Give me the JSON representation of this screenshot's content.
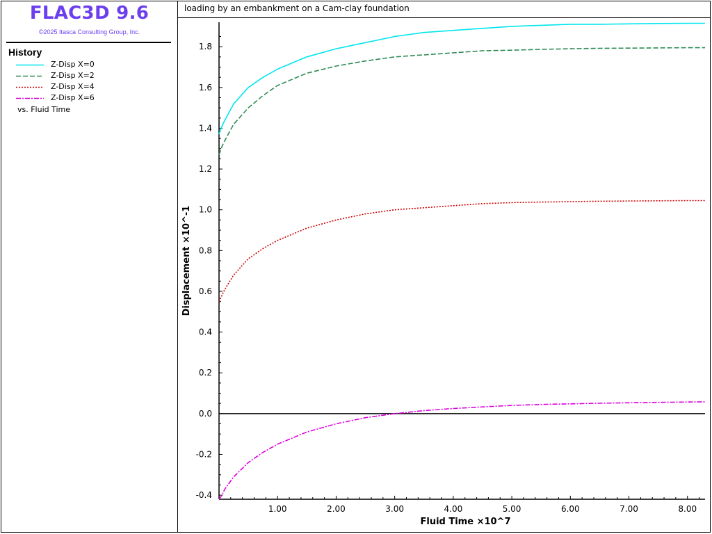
{
  "app": {
    "title": "FLAC3D 9.6",
    "copyright": "©2025 Itasca Consulting Group, Inc.",
    "title_color": "#6b3ff0"
  },
  "history_panel": {
    "heading": "History",
    "vs_label": "vs. Fluid Time"
  },
  "plot": {
    "title": "loading by an embankment on a Cam-clay foundation"
  },
  "chart_data": {
    "type": "line",
    "title": "loading by an embankment on a Cam-clay foundation",
    "xlabel": "Fluid Time ×10^7",
    "ylabel": "Displacement ×10^-1",
    "xlim": [
      0.0,
      8.3
    ],
    "ylim": [
      -0.42,
      1.92
    ],
    "x_ticks": [
      "1.00",
      "2.00",
      "3.00",
      "4.00",
      "5.00",
      "6.00",
      "7.00",
      "8.00"
    ],
    "y_ticks": [
      "-0.4",
      "-0.2",
      "0.0",
      "0.2",
      "0.4",
      "0.6",
      "0.8",
      "1.0",
      "1.2",
      "1.4",
      "1.6",
      "1.8"
    ],
    "grid": false,
    "zero_line": true,
    "legend_placement": "left panel",
    "x": [
      0.0,
      0.05,
      0.1,
      0.25,
      0.5,
      0.75,
      1.0,
      1.5,
      2.0,
      2.5,
      3.0,
      3.5,
      4.0,
      4.5,
      5.0,
      5.5,
      6.0,
      6.5,
      7.0,
      7.5,
      8.0,
      8.3
    ],
    "series": [
      {
        "name": "Z-Disp X=0",
        "color": "#00e5ee",
        "dash": "solid",
        "values": [
          1.37,
          1.41,
          1.44,
          1.52,
          1.6,
          1.65,
          1.69,
          1.75,
          1.79,
          1.82,
          1.85,
          1.87,
          1.88,
          1.89,
          1.9,
          1.905,
          1.91,
          1.91,
          1.912,
          1.914,
          1.915,
          1.915
        ]
      },
      {
        "name": "Z-Disp X=2",
        "color": "#2e8b57",
        "dash": "dashed",
        "values": [
          1.27,
          1.31,
          1.34,
          1.42,
          1.5,
          1.56,
          1.61,
          1.67,
          1.705,
          1.73,
          1.75,
          1.76,
          1.77,
          1.78,
          1.783,
          1.787,
          1.79,
          1.792,
          1.793,
          1.794,
          1.795,
          1.795
        ]
      },
      {
        "name": "Z-Disp X=4",
        "color": "#cc0000",
        "dash": "dotted",
        "values": [
          0.55,
          0.58,
          0.61,
          0.68,
          0.76,
          0.81,
          0.85,
          0.91,
          0.95,
          0.98,
          1.0,
          1.01,
          1.02,
          1.03,
          1.035,
          1.038,
          1.04,
          1.042,
          1.043,
          1.044,
          1.045,
          1.045
        ]
      },
      {
        "name": "Z-Disp X=6",
        "color": "#dd00dd",
        "dash": "dashdot",
        "values": [
          -0.42,
          -0.4,
          -0.37,
          -0.31,
          -0.24,
          -0.19,
          -0.15,
          -0.09,
          -0.05,
          -0.02,
          0.0,
          0.015,
          0.025,
          0.033,
          0.04,
          0.045,
          0.048,
          0.051,
          0.053,
          0.055,
          0.057,
          0.058
        ]
      }
    ]
  }
}
